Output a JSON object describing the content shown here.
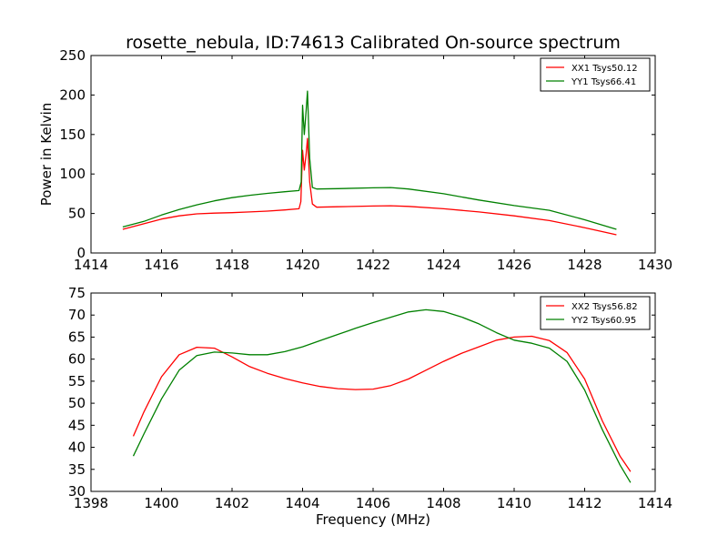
{
  "chart_title": "rosette_nebula, ID:74613 Calibrated On-source spectrum",
  "chart_data": [
    {
      "type": "line",
      "title": "rosette_nebula, ID:74613 Calibrated On-source spectrum",
      "xlabel": "",
      "ylabel": "Power in Kelvin",
      "xlim": [
        1414,
        1430
      ],
      "ylim": [
        0,
        250
      ],
      "xticks": [
        1414,
        1416,
        1418,
        1420,
        1422,
        1424,
        1426,
        1428,
        1430
      ],
      "yticks": [
        0,
        50,
        100,
        150,
        200,
        250
      ],
      "grid": false,
      "legend_position": "top-right",
      "series": [
        {
          "name": "XX1 Tsys50.12",
          "color": "#ff0000",
          "points": [
            [
              1414.9,
              30
            ],
            [
              1415.5,
              37
            ],
            [
              1416,
              43
            ],
            [
              1416.5,
              47
            ],
            [
              1417,
              49.5
            ],
            [
              1417.5,
              50.5
            ],
            [
              1418,
              51
            ],
            [
              1418.5,
              52
            ],
            [
              1419,
              53
            ],
            [
              1419.5,
              54.5
            ],
            [
              1419.9,
              56
            ],
            [
              1419.95,
              65
            ],
            [
              1420.0,
              130
            ],
            [
              1420.05,
              105
            ],
            [
              1420.1,
              125
            ],
            [
              1420.14,
              145
            ],
            [
              1420.2,
              90
            ],
            [
              1420.28,
              62
            ],
            [
              1420.4,
              58
            ],
            [
              1421,
              58.5
            ],
            [
              1422,
              59.5
            ],
            [
              1422.5,
              59.8
            ],
            [
              1423,
              59
            ],
            [
              1424,
              56
            ],
            [
              1425,
              52
            ],
            [
              1426,
              47
            ],
            [
              1427,
              41
            ],
            [
              1428,
              32
            ],
            [
              1428.9,
              23
            ]
          ]
        },
        {
          "name": "YY1 Tsys66.41",
          "color": "#008000",
          "points": [
            [
              1414.9,
              33
            ],
            [
              1415.5,
              40
            ],
            [
              1416,
              48
            ],
            [
              1416.5,
              55
            ],
            [
              1417,
              61
            ],
            [
              1417.5,
              66
            ],
            [
              1418,
              70
            ],
            [
              1418.5,
              73
            ],
            [
              1419,
              75.5
            ],
            [
              1419.5,
              77.5
            ],
            [
              1419.9,
              79
            ],
            [
              1419.96,
              90
            ],
            [
              1420.0,
              187
            ],
            [
              1420.05,
              150
            ],
            [
              1420.1,
              180
            ],
            [
              1420.14,
              205
            ],
            [
              1420.2,
              120
            ],
            [
              1420.28,
              83
            ],
            [
              1420.4,
              81
            ],
            [
              1421,
              81.5
            ],
            [
              1422,
              82.5
            ],
            [
              1422.5,
              82.8
            ],
            [
              1423,
              81
            ],
            [
              1424,
              75
            ],
            [
              1425,
              67
            ],
            [
              1426,
              60
            ],
            [
              1427,
              54
            ],
            [
              1428,
              42
            ],
            [
              1428.9,
              30
            ]
          ]
        }
      ]
    },
    {
      "type": "line",
      "title": "",
      "xlabel": "Frequency (MHz)",
      "ylabel": "",
      "xlim": [
        1398,
        1414
      ],
      "ylim": [
        30,
        75
      ],
      "xticks": [
        1398,
        1400,
        1402,
        1404,
        1406,
        1408,
        1410,
        1412,
        1414
      ],
      "yticks": [
        30,
        35,
        40,
        45,
        50,
        55,
        60,
        65,
        70,
        75
      ],
      "grid": false,
      "legend_position": "top-right",
      "series": [
        {
          "name": "XX2 Tsys56.82",
          "color": "#ff0000",
          "points": [
            [
              1399.2,
              42.5
            ],
            [
              1399.5,
              48
            ],
            [
              1400,
              56
            ],
            [
              1400.5,
              61
            ],
            [
              1401,
              62.7
            ],
            [
              1401.5,
              62.5
            ],
            [
              1402,
              60.5
            ],
            [
              1402.5,
              58.3
            ],
            [
              1403,
              56.8
            ],
            [
              1403.5,
              55.6
            ],
            [
              1404,
              54.6
            ],
            [
              1404.5,
              53.8
            ],
            [
              1405,
              53.3
            ],
            [
              1405.5,
              53.1
            ],
            [
              1406,
              53.2
            ],
            [
              1406.5,
              54
            ],
            [
              1407,
              55.5
            ],
            [
              1407.5,
              57.5
            ],
            [
              1408,
              59.5
            ],
            [
              1408.5,
              61.3
            ],
            [
              1409,
              62.8
            ],
            [
              1409.5,
              64.3
            ],
            [
              1410,
              65
            ],
            [
              1410.5,
              65.2
            ],
            [
              1411,
              64.2
            ],
            [
              1411.5,
              61.5
            ],
            [
              1412,
              55.5
            ],
            [
              1412.5,
              46
            ],
            [
              1413,
              38
            ],
            [
              1413.3,
              34.5
            ]
          ]
        },
        {
          "name": "YY2 Tsys60.95",
          "color": "#008000",
          "points": [
            [
              1399.2,
              38
            ],
            [
              1399.5,
              43
            ],
            [
              1400,
              51
            ],
            [
              1400.5,
              57.5
            ],
            [
              1401,
              60.8
            ],
            [
              1401.5,
              61.6
            ],
            [
              1402,
              61.4
            ],
            [
              1402.5,
              61
            ],
            [
              1403,
              61
            ],
            [
              1403.5,
              61.7
            ],
            [
              1404,
              62.8
            ],
            [
              1404.5,
              64.2
            ],
            [
              1405,
              65.6
            ],
            [
              1405.5,
              67
            ],
            [
              1406,
              68.3
            ],
            [
              1406.5,
              69.5
            ],
            [
              1407,
              70.7
            ],
            [
              1407.5,
              71.2
            ],
            [
              1408,
              70.8
            ],
            [
              1408.5,
              69.6
            ],
            [
              1409,
              68
            ],
            [
              1409.5,
              66
            ],
            [
              1410,
              64.3
            ],
            [
              1410.5,
              63.6
            ],
            [
              1411,
              62.5
            ],
            [
              1411.5,
              59.5
            ],
            [
              1412,
              53
            ],
            [
              1412.5,
              44
            ],
            [
              1413,
              36
            ],
            [
              1413.3,
              32
            ]
          ]
        }
      ]
    }
  ]
}
